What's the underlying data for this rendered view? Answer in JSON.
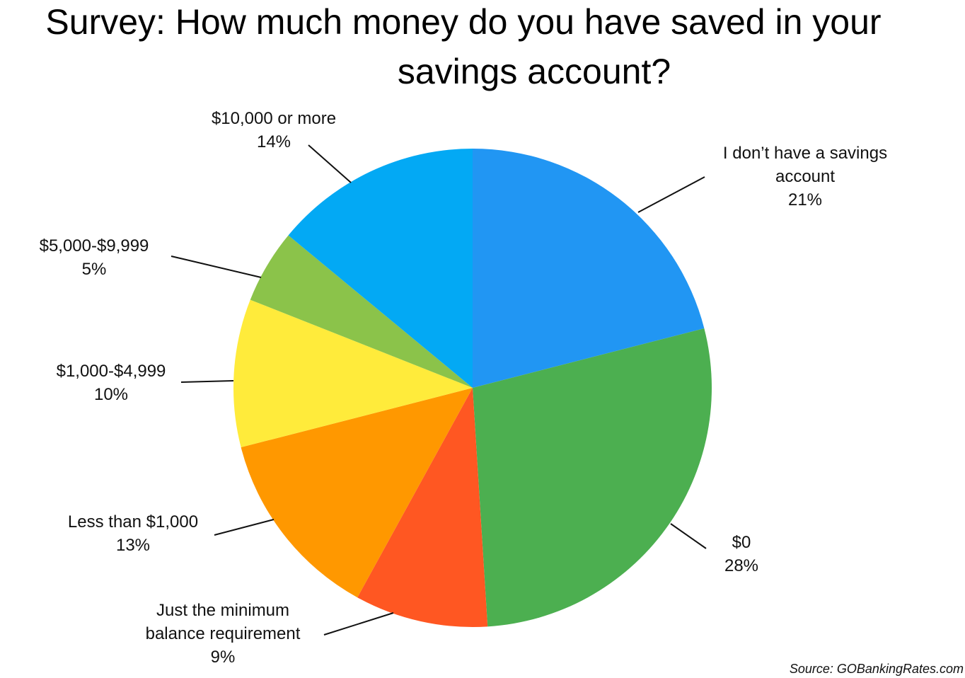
{
  "chart_data": {
    "type": "pie",
    "title": [
      "Survey: How much money do you have saved in your",
      "savings account?"
    ],
    "slices": [
      {
        "label": [
          "I don’t have a savings",
          "account"
        ],
        "percent_label": "21%",
        "value": 21,
        "color": "#2196f3"
      },
      {
        "label": [
          "$0"
        ],
        "percent_label": "28%",
        "value": 28,
        "color": "#4caf50"
      },
      {
        "label": [
          "Just the minimum",
          "balance requirement"
        ],
        "percent_label": "9%",
        "value": 9,
        "color": "#ff5722"
      },
      {
        "label": [
          "Less than $1,000"
        ],
        "percent_label": "13%",
        "value": 13,
        "color": "#ff9800"
      },
      {
        "label": [
          "$1,000-$4,999"
        ],
        "percent_label": "10%",
        "value": 10,
        "color": "#ffeb3b"
      },
      {
        "label": [
          "$5,000-$9,999"
        ],
        "percent_label": "5%",
        "value": 5,
        "color": "#8bc34a"
      },
      {
        "label": [
          "$10,000 or more"
        ],
        "percent_label": "14%",
        "value": 14,
        "color": "#03a9f4"
      }
    ],
    "start_angle": "12 o'clock",
    "direction": "clockwise",
    "labels": "outside with leader lines",
    "source": "Source: GOBankingRates.com"
  }
}
